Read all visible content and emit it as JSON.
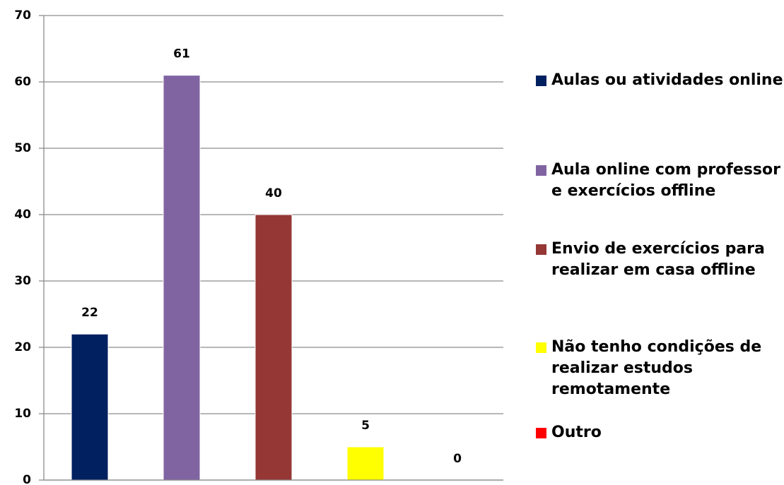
{
  "chart_data": {
    "type": "bar",
    "series": [
      {
        "name": "Aulas ou atividades online",
        "color": "#002060",
        "values": [
          22
        ]
      },
      {
        "name": "Aula online com professor e exercícios offline",
        "color": "#8064a2",
        "values": [
          61
        ]
      },
      {
        "name": "Envio de exercícios para realizar em casa offline",
        "color": "#953735",
        "values": [
          40
        ]
      },
      {
        "name": "Não tenho condições de realizar estudos remotamente",
        "color": "#ffff00",
        "values": [
          5
        ]
      },
      {
        "name": "Outro",
        "color": "#ff0000",
        "values": [
          0
        ]
      }
    ],
    "ylim": [
      0,
      70
    ],
    "yticks": [
      0,
      10,
      20,
      30,
      40,
      50,
      60,
      70
    ],
    "grid": true,
    "legend": "right"
  }
}
